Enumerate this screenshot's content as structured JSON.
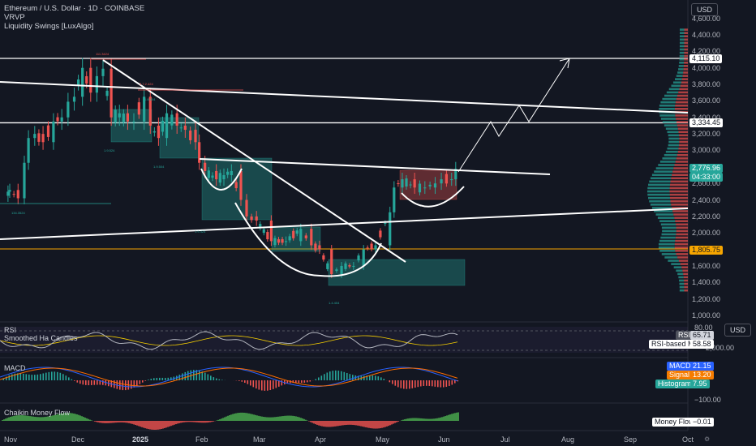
{
  "header": {
    "symbol_line": "Ethereum / U.S. Dollar · 1D · COINBASE",
    "indicator_1": "VRVP",
    "indicator_2": "Liquidity Swings [LuxAlgo]"
  },
  "currency_button": "USD",
  "currency_button_2": "USD",
  "price_axis": {
    "ticks": [
      "4,400.00",
      "4,200.00",
      "4,000.00",
      "3,800.00",
      "3,600.00",
      "3,400.00",
      "3,200.00",
      "3,000.00",
      "2,800.00",
      "2,600.00",
      "2,400.00",
      "2,200.00",
      "2,000.00",
      "1,800.00",
      "1,600.00",
      "1,400.00",
      "1,200.00",
      "1,000.00"
    ],
    "top_partial": "4,600.00"
  },
  "price_labels": {
    "resistance_top": "4,115.10",
    "resistance_mid": "3,334.45",
    "current_price": "2,776.96",
    "countdown": "04:33:00",
    "support": "1,805.75"
  },
  "rsi_pane": {
    "title": "RSI",
    "subtitle": "Smoothed Ha Candles",
    "tick_80": "80.00",
    "tick_2000": "2,000.00",
    "rsi_label": "RSI",
    "rsi_value": "65.71",
    "ma_label": "RSI-based MA",
    "ma_value": "58.58"
  },
  "macd_pane": {
    "title": "MACD",
    "macd_label": "MACD",
    "macd_value": "21.15",
    "signal_label": "Signal",
    "signal_value": "13.20",
    "hist_label": "Histogram",
    "hist_value": "7.95",
    "tick": "−100.00"
  },
  "cmf_pane": {
    "title": "Chaikin Money Flow",
    "mf_label": "Money Flow",
    "mf_value": "−0.01"
  },
  "time_axis": [
    "Nov",
    "Dec",
    "2025",
    "Feb",
    "Mar",
    "Apr",
    "May",
    "Jun",
    "Jul",
    "Aug",
    "Sep",
    "Oct"
  ],
  "pivot_labels": [
    "111.3424",
    "3.7.2.424",
    "1.9.524",
    "1.9.504",
    "1.9.424",
    "1.4.404",
    "134.3524",
    "1.8.204"
  ],
  "colors": {
    "bg": "#131722",
    "up": "#26a69a",
    "down": "#ef5350",
    "accent_orange": "#f7a600",
    "white": "#ffffff",
    "rsi": "#b2b5be"
  },
  "chart_data": {
    "type": "candlestick",
    "symbol": "ETH/USD",
    "interval": "1D",
    "ylim": [
      1000,
      4600
    ],
    "close_series": [
      [
        "Oct 27",
        2500
      ],
      [
        "Nov 1",
        2520
      ],
      [
        "Nov 5",
        2420
      ],
      [
        "Nov 8",
        2850
      ],
      [
        "Nov 10",
        3150
      ],
      [
        "Nov 13",
        3200
      ],
      [
        "Nov 17",
        3100
      ],
      [
        "Nov 22",
        3350
      ],
      [
        "Nov 26",
        3400
      ],
      [
        "Nov 29",
        3590
      ],
      [
        "Dec 2",
        3650
      ],
      [
        "Dec 6",
        4000
      ],
      [
        "Dec 10",
        3700
      ],
      [
        "Dec 13",
        3900
      ],
      [
        "Dec 16",
        3990
      ],
      [
        "Dec 20",
        3400
      ],
      [
        "Dec 24",
        3450
      ],
      [
        "Dec 28",
        3350
      ],
      [
        "Jan 1",
        3350
      ],
      [
        "Jan 6",
        3650
      ],
      [
        "Jan 9",
        3300
      ],
      [
        "Jan 13",
        3150
      ],
      [
        "Jan 17",
        3450
      ],
      [
        "Jan 22",
        3300
      ],
      [
        "Jan 26",
        3250
      ],
      [
        "Feb 1",
        3100
      ],
      [
        "Feb 3",
        2850
      ],
      [
        "Feb 6",
        2750
      ],
      [
        "Feb 12",
        2650
      ],
      [
        "Feb 16",
        2700
      ],
      [
        "Feb 20",
        2750
      ],
      [
        "Feb 25",
        2400
      ],
      [
        "Feb 28",
        2200
      ],
      [
        "Mar 3",
        2150
      ],
      [
        "Mar 10",
        1900
      ],
      [
        "Mar 17",
        1900
      ],
      [
        "Mar 24",
        2050
      ],
      [
        "Mar 29",
        1850
      ],
      [
        "Apr 3",
        1800
      ],
      [
        "Apr 9",
        1500
      ],
      [
        "Apr 14",
        1600
      ],
      [
        "Apr 20",
        1600
      ],
      [
        "Apr 25",
        1800
      ],
      [
        "May 1",
        1850
      ],
      [
        "May 8",
        2250
      ],
      [
        "May 10",
        2550
      ],
      [
        "May 14",
        2650
      ],
      [
        "May 20",
        2550
      ],
      [
        "May 25",
        2550
      ],
      [
        "May 30",
        2600
      ],
      [
        "Jun 3",
        2650
      ],
      [
        "Jun 8",
        2650
      ],
      [
        "Jun 10",
        2777
      ]
    ],
    "horizontal_levels": [
      4115.1,
      3334.45,
      1805.75
    ],
    "current_price": 2776.96,
    "rsi": {
      "rsi": 65.71,
      "ma": 58.58
    },
    "macd": {
      "macd": 21.15,
      "signal": 13.2,
      "histogram": 7.95
    },
    "cmf": -0.01
  }
}
